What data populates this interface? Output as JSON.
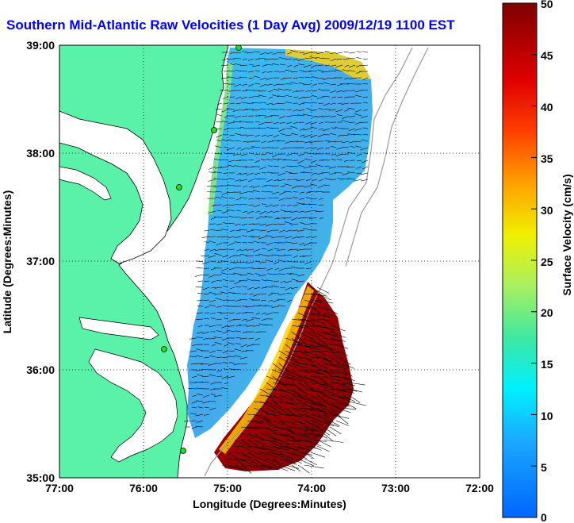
{
  "title": "Southern Mid-Atlantic Raw Velocities (1 Day Avg) 2009/12/19 1100 EST",
  "x_axis": {
    "label": "Longitude (Degrees:Minutes)",
    "ticks": [
      "77:00",
      "76:00",
      "75:00",
      "74:00",
      "73:00",
      "72:00"
    ],
    "values": [
      -77,
      -76,
      -75,
      -74,
      -73,
      -72
    ]
  },
  "y_axis": {
    "label": "Latitude (Degrees:Minutes)",
    "ticks": [
      "39:00",
      "38:00",
      "37:00",
      "36:00",
      "35:00"
    ],
    "values": [
      39,
      38,
      37,
      36,
      35
    ]
  },
  "colorbar": {
    "label": "Surface Velocity (cm/s)",
    "ticks": [
      "50",
      "45",
      "40",
      "35",
      "30",
      "25",
      "20",
      "15",
      "10",
      "5",
      "0"
    ],
    "min": 0,
    "max": 50
  },
  "colors": {
    "land": "#5af2a8",
    "water": "#ffffff",
    "title": "#0000ff",
    "station": "#22dd22"
  }
}
